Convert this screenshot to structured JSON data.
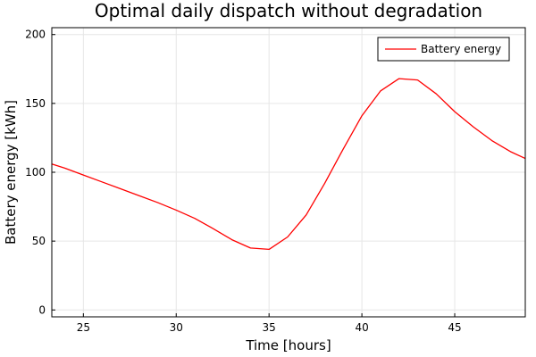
{
  "chart_data": {
    "type": "line",
    "title": "Optimal daily dispatch without degradation",
    "xlabel": "Time [hours]",
    "ylabel": "Battery energy [kWh]",
    "xlim": [
      23.3,
      48.8
    ],
    "ylim": [
      -5,
      205
    ],
    "xticks": [
      25,
      30,
      35,
      40,
      45
    ],
    "yticks": [
      0,
      50,
      100,
      150,
      200
    ],
    "grid": true,
    "legend_position": "top-right",
    "series": [
      {
        "name": "Battery energy",
        "color": "#ff0000",
        "x": [
          23.3,
          24,
          25,
          26,
          27,
          28,
          29,
          30,
          31,
          32,
          33,
          34,
          35,
          36,
          37,
          38,
          39,
          40,
          41,
          42,
          43,
          44,
          45,
          46,
          47,
          48,
          48.8
        ],
        "y": [
          106,
          103,
          98,
          93,
          88,
          83,
          78,
          72.5,
          66.5,
          59,
          51,
          45,
          44,
          53,
          69,
          92,
          117,
          141,
          159,
          168,
          167,
          157,
          144,
          133,
          123,
          115,
          110
        ]
      }
    ]
  }
}
